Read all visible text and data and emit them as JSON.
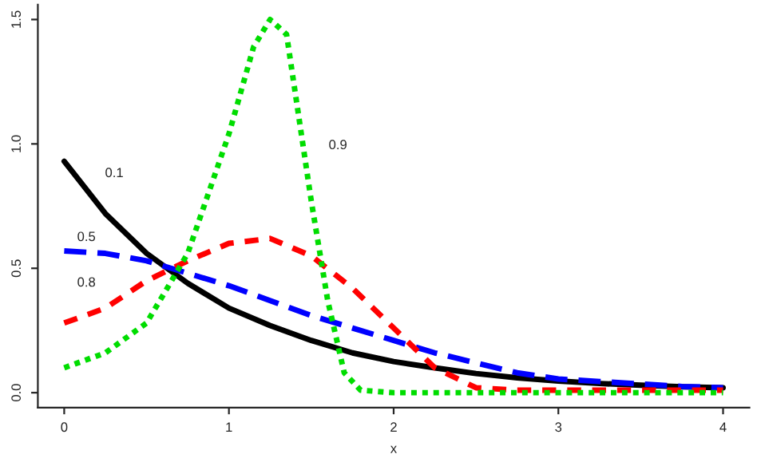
{
  "chart_data": {
    "type": "line",
    "xlabel": "x",
    "x": [
      0,
      0.25,
      0.5,
      0.75,
      1,
      1.25,
      1.5,
      1.75,
      2,
      2.25,
      2.5,
      2.75,
      3,
      3.25,
      3.5,
      3.75,
      4
    ],
    "series": [
      {
        "name": "0.1",
        "color": "#000000",
        "line_style": "solid",
        "values": [
          0.93,
          0.72,
          0.56,
          0.44,
          0.34,
          0.27,
          0.21,
          0.16,
          0.125,
          0.1,
          0.077,
          0.06,
          0.047,
          0.037,
          0.03,
          0.024,
          0.02
        ]
      },
      {
        "name": "0.5",
        "color": "#0000ff",
        "line_style": "dashed",
        "values": [
          0.57,
          0.56,
          0.53,
          0.48,
          0.43,
          0.37,
          0.31,
          0.26,
          0.21,
          0.16,
          0.12,
          0.08,
          0.055,
          0.045,
          0.035,
          0.025,
          0.02
        ]
      },
      {
        "name": "0.8",
        "color": "#ff0000",
        "line_style": "dashed",
        "values": [
          0.28,
          0.34,
          0.45,
          0.53,
          0.6,
          0.62,
          0.55,
          0.42,
          0.26,
          0.1,
          0.02,
          0.01,
          0.01,
          0.01,
          0.01,
          0.01,
          0.01
        ]
      },
      {
        "name": "0.9",
        "color": "#00dd00",
        "line_style": "dotted",
        "x": [
          0,
          0.25,
          0.5,
          0.75,
          1,
          1.15,
          1.25,
          1.35,
          1.5,
          1.6,
          1.7,
          1.8,
          2,
          2.5,
          3,
          3.5,
          4
        ],
        "values": [
          0.1,
          0.16,
          0.28,
          0.56,
          1.04,
          1.39,
          1.5,
          1.44,
          0.77,
          0.37,
          0.08,
          0.01,
          0,
          0,
          0,
          0,
          0
        ]
      }
    ],
    "xlim": [
      -0.16,
      4.16
    ],
    "xticks": [
      0,
      1,
      2,
      3,
      4
    ],
    "ylim": [
      -0.06,
      1.56
    ],
    "yticks": [
      {
        "value": 0,
        "label": "0.0"
      },
      {
        "value": 0.5,
        "label": "0.5"
      },
      {
        "value": 1,
        "label": "1.0"
      },
      {
        "value": 1.5,
        "label": "1.5"
      }
    ],
    "grid": false,
    "legend": false
  }
}
